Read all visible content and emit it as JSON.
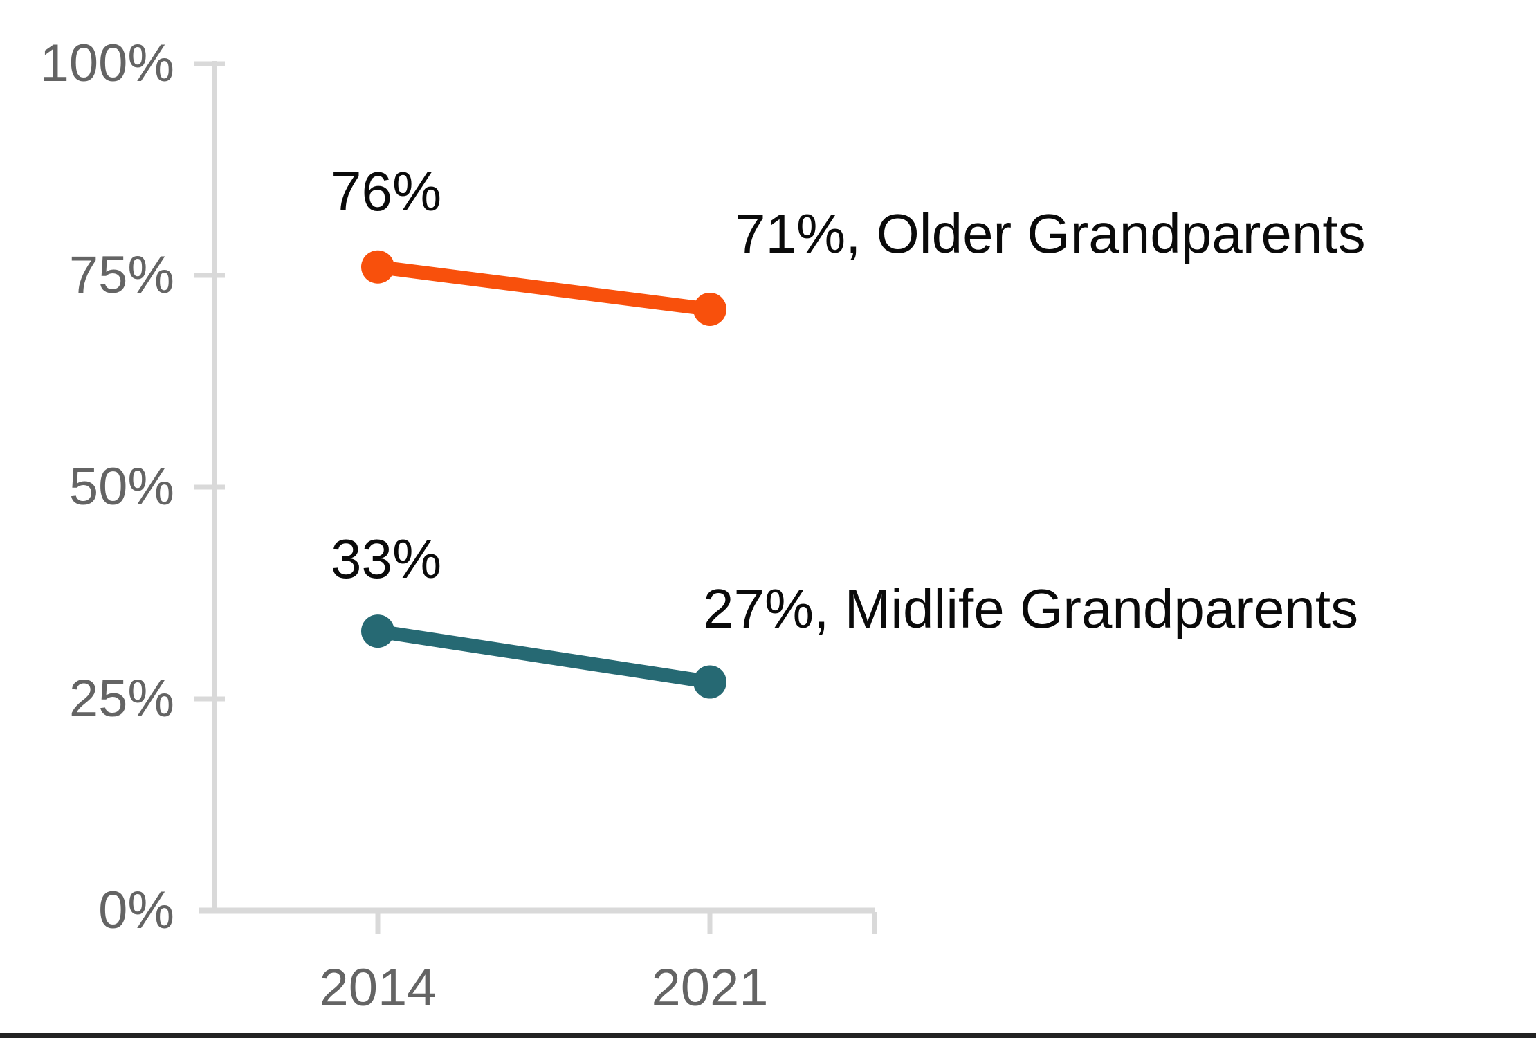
{
  "chart_data": {
    "type": "line",
    "title": "",
    "categories": [
      "2014",
      "2021"
    ],
    "series": [
      {
        "name": "Older Grandparents",
        "values": [
          76,
          71
        ],
        "color": "#F8500C",
        "start_label": "76%",
        "end_label": "71%, Older Grandparents"
      },
      {
        "name": "Midlife Grandparents",
        "values": [
          33,
          27
        ],
        "color": "#266973",
        "start_label": "33%",
        "end_label": "27%, Midlife Grandparents"
      }
    ],
    "xlabel": "",
    "ylabel": "",
    "ylim": [
      0,
      100
    ],
    "y_ticks": [
      {
        "value": 100,
        "label": "100%"
      },
      {
        "value": 75,
        "label": "75%"
      },
      {
        "value": 50,
        "label": "50%"
      },
      {
        "value": 25,
        "label": "25%"
      },
      {
        "value": 0,
        "label": "0%"
      }
    ],
    "grid": "off",
    "legend_position": "inline-right",
    "axis_color": "#D9D9D9",
    "tick_label_color": "#646464",
    "data_label_color": "#0A0A0A"
  },
  "footer": {
    "bar_color": "#222222"
  }
}
